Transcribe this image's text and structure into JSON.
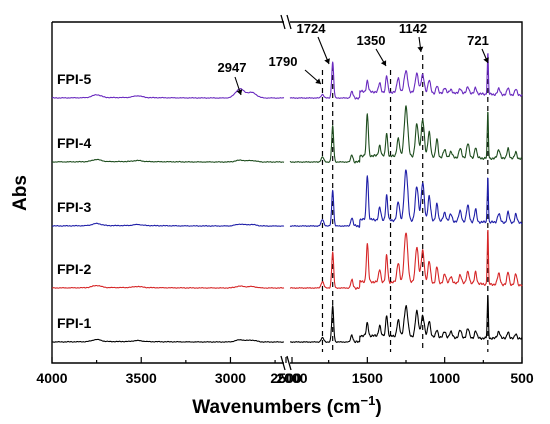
{
  "chart_data": {
    "type": "line",
    "xlabel": "Wavenumbers (cm",
    "xlabel_sup": "−1",
    "xlabel_close": ")",
    "ylabel": "Abs",
    "x_axis": "reversed, broken between 2700 and 2000",
    "x_segments": [
      [
        4000,
        2700
      ],
      [
        2000,
        500
      ]
    ],
    "x_ticks": [
      4000,
      3500,
      3000,
      2500,
      2000,
      1500,
      1000,
      500
    ],
    "x_tick_labels": [
      "4000",
      "3500",
      "3000",
      "2500",
      "2000",
      "1500",
      "1000",
      "500"
    ],
    "grid": false,
    "series": [
      {
        "name": "FPI-1",
        "color": "#000000",
        "offset": 0
      },
      {
        "name": "FPI-2",
        "color": "#d62728",
        "offset": 1
      },
      {
        "name": "FPI-3",
        "color": "#1f1fa8",
        "offset": 2
      },
      {
        "name": "FPI-4",
        "color": "#1e4d1e",
        "offset": 3
      },
      {
        "name": "FPI-5",
        "color": "#6a2bbf",
        "offset": 4
      }
    ],
    "annotations": [
      {
        "label": "1790",
        "x": 1790,
        "guide": true
      },
      {
        "label": "1724",
        "x": 1724,
        "guide": true
      },
      {
        "label": "1350",
        "x": 1350,
        "guide": true
      },
      {
        "label": "1142",
        "x": 1142,
        "guide": true
      },
      {
        "label": "721",
        "x": 721,
        "guide": true
      },
      {
        "label": "2947",
        "x": 2947,
        "guide": false
      }
    ],
    "peaks": [
      {
        "x": 1790,
        "amp": [
          0.12,
          0.18,
          0.18,
          0.14,
          0.1
        ],
        "w": 12
      },
      {
        "x": 1724,
        "amp": [
          1.0,
          1.0,
          1.0,
          1.0,
          1.0
        ],
        "w": 9
      },
      {
        "x": 1600,
        "amp": [
          0.2,
          0.22,
          0.22,
          0.2,
          0.18
        ],
        "w": 10
      },
      {
        "x": 1500,
        "amp": [
          0.35,
          1.05,
          1.25,
          1.15,
          0.3
        ],
        "w": 9
      },
      {
        "x": 1420,
        "amp": [
          0.3,
          0.35,
          0.35,
          0.3,
          0.25
        ],
        "w": 10
      },
      {
        "x": 1375,
        "amp": [
          0.6,
          0.75,
          0.7,
          0.65,
          0.45
        ],
        "w": 9
      },
      {
        "x": 1300,
        "amp": [
          0.45,
          0.55,
          0.5,
          0.5,
          0.4
        ],
        "w": 12
      },
      {
        "x": 1250,
        "amp": [
          0.85,
          1.4,
          1.4,
          1.4,
          0.6
        ],
        "w": 16
      },
      {
        "x": 1180,
        "amp": [
          0.7,
          1.0,
          0.95,
          0.9,
          0.55
        ],
        "w": 14
      },
      {
        "x": 1142,
        "amp": [
          0.6,
          0.9,
          1.05,
          1.05,
          0.5
        ],
        "w": 14
      },
      {
        "x": 1100,
        "amp": [
          0.45,
          0.6,
          0.7,
          0.7,
          0.35
        ],
        "w": 12
      },
      {
        "x": 1050,
        "amp": [
          0.2,
          0.45,
          0.5,
          0.5,
          0.2
        ],
        "w": 10
      },
      {
        "x": 1000,
        "amp": [
          0.15,
          0.25,
          0.25,
          0.2,
          0.15
        ],
        "w": 12
      },
      {
        "x": 960,
        "amp": [
          0.15,
          0.2,
          0.2,
          0.15,
          0.12
        ],
        "w": 12
      },
      {
        "x": 900,
        "amp": [
          0.2,
          0.25,
          0.3,
          0.25,
          0.15
        ],
        "w": 12
      },
      {
        "x": 850,
        "amp": [
          0.25,
          0.35,
          0.45,
          0.4,
          0.2
        ],
        "w": 12
      },
      {
        "x": 800,
        "amp": [
          0.2,
          0.35,
          0.35,
          0.3,
          0.18
        ],
        "w": 10
      },
      {
        "x": 721,
        "amp": [
          1.2,
          1.55,
          1.3,
          1.3,
          1.15
        ],
        "w": 5
      },
      {
        "x": 650,
        "amp": [
          0.2,
          0.3,
          0.25,
          0.25,
          0.15
        ],
        "w": 12
      },
      {
        "x": 590,
        "amp": [
          0.2,
          0.35,
          0.3,
          0.3,
          0.18
        ],
        "w": 10
      },
      {
        "x": 540,
        "amp": [
          0.15,
          0.3,
          0.25,
          0.2,
          0.15
        ],
        "w": 10
      }
    ],
    "high_region_features": [
      {
        "x": 3750,
        "amp": [
          0.06,
          0.06,
          0.06,
          0.06,
          0.08
        ]
      },
      {
        "x": 3520,
        "amp": [
          0.03,
          0.03,
          0.03,
          0.03,
          0.05
        ]
      },
      {
        "x": 2947,
        "amp": [
          0.06,
          0.05,
          0.05,
          0.05,
          0.25
        ]
      },
      {
        "x": 2880,
        "amp": [
          0.05,
          0.04,
          0.04,
          0.04,
          0.15
        ]
      }
    ],
    "colors": {
      "axis": "#000000"
    }
  }
}
